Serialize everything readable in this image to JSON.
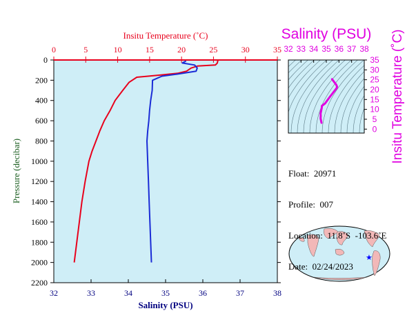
{
  "colors": {
    "temperature": "#e8001c",
    "salinity": "#1a2bd6",
    "ts_curve": "#e000e0",
    "axis_salinity": "#000080",
    "panel_bg": "#cfeef7",
    "land": "#f2b8b8",
    "ocean": "#cfeef7"
  },
  "chart_data": [
    {
      "type": "line",
      "name": "profile",
      "x_bottom_label": "Salinity (PSU)",
      "x_top_label": "Insitu Temperature (˚C)",
      "ylabel": "Pressure (decibar)",
      "x_bottom_range": [
        32,
        38
      ],
      "x_top_range": [
        0,
        35
      ],
      "y_range": [
        0,
        2200
      ],
      "y_inverted": true,
      "x_bottom_ticks": [
        "32",
        "33",
        "34",
        "35",
        "36",
        "37",
        "38"
      ],
      "x_top_ticks": [
        "0",
        "5",
        "10",
        "15",
        "20",
        "25",
        "30",
        "35"
      ],
      "y_ticks": [
        "0",
        "200",
        "400",
        "600",
        "800",
        "1000",
        "1200",
        "1400",
        "1600",
        "1800",
        "2000",
        "2200"
      ],
      "series": [
        {
          "name": "Insitu Temperature",
          "axis": "top",
          "points": [
            [
              25.7,
              0
            ],
            [
              25.6,
              30
            ],
            [
              25.3,
              50
            ],
            [
              22.5,
              60
            ],
            [
              21.5,
              80
            ],
            [
              20.8,
              110
            ],
            [
              19.5,
              130
            ],
            [
              16.5,
              150
            ],
            [
              13.0,
              170
            ],
            [
              11.8,
              220
            ],
            [
              10.8,
              300
            ],
            [
              10.2,
              350
            ],
            [
              9.6,
              400
            ],
            [
              8.8,
              500
            ],
            [
              7.9,
              600
            ],
            [
              7.2,
              700
            ],
            [
              6.6,
              800
            ],
            [
              6.0,
              900
            ],
            [
              5.5,
              1000
            ],
            [
              4.9,
              1200
            ],
            [
              4.4,
              1400
            ],
            [
              4.0,
              1600
            ],
            [
              3.6,
              1800
            ],
            [
              3.2,
              2000
            ]
          ]
        },
        {
          "name": "Salinity",
          "axis": "bottom",
          "points": [
            [
              35.55,
              10
            ],
            [
              35.5,
              20
            ],
            [
              35.45,
              30
            ],
            [
              35.78,
              50
            ],
            [
              35.85,
              80
            ],
            [
              35.82,
              110
            ],
            [
              35.3,
              140
            ],
            [
              34.9,
              160
            ],
            [
              34.65,
              200
            ],
            [
              34.64,
              300
            ],
            [
              34.6,
              400
            ],
            [
              34.57,
              500
            ],
            [
              34.55,
              600
            ],
            [
              34.52,
              700
            ],
            [
              34.5,
              800
            ],
            [
              34.52,
              1000
            ],
            [
              34.54,
              1200
            ],
            [
              34.56,
              1400
            ],
            [
              34.58,
              1600
            ],
            [
              34.6,
              1800
            ],
            [
              34.62,
              2000
            ]
          ]
        }
      ]
    },
    {
      "type": "line",
      "name": "ts_diagram",
      "x_top_label": "Salinity (PSU)",
      "y_right_label": "Insitu Temperature (˚C)",
      "x_range": [
        32,
        38
      ],
      "y_range": [
        -2,
        35
      ],
      "x_ticks": [
        "32",
        "33",
        "34",
        "35",
        "36",
        "37",
        "38"
      ],
      "y_ticks": [
        "0",
        "5",
        "10",
        "15",
        "20",
        "25",
        "30",
        "35"
      ],
      "series": [
        {
          "name": "T-S",
          "points": [
            [
              34.62,
              3.2
            ],
            [
              34.58,
              4.4
            ],
            [
              34.55,
              5.5
            ],
            [
              34.56,
              6.6
            ],
            [
              34.55,
              7.9
            ],
            [
              34.6,
              9.6
            ],
            [
              34.64,
              10.8
            ],
            [
              34.65,
              11.8
            ],
            [
              34.9,
              13.0
            ],
            [
              35.3,
              16.5
            ],
            [
              35.82,
              20.8
            ],
            [
              35.85,
              21.5
            ],
            [
              35.78,
              22.5
            ],
            [
              35.45,
              25.3
            ]
          ]
        }
      ]
    }
  ],
  "info": {
    "float": "Float:  20971",
    "profile": "Profile:  007",
    "location": "Location:  11.8˚S  -103.6˚E",
    "date": "Date:  02/24/2023"
  },
  "map": {
    "marker_lon": -103.6,
    "marker_lat": -11.8
  }
}
